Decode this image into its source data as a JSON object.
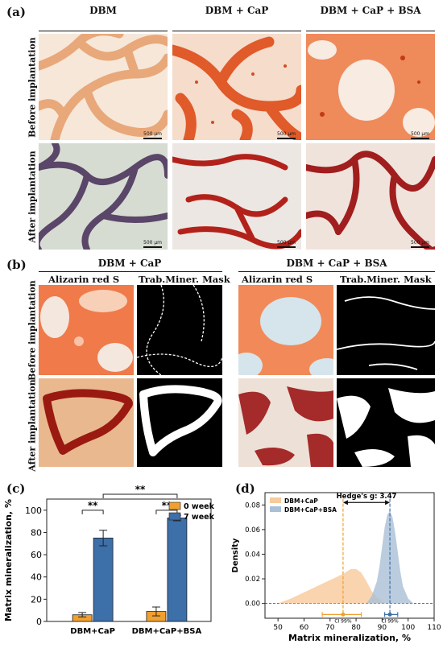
{
  "panel_a": {
    "label": "(a)",
    "columns": [
      "DBM",
      "DBM + CaP",
      "DBM + CaP + BSA"
    ],
    "rows": [
      "Before implantation",
      "After implantation"
    ],
    "scale_bar": "500 µm"
  },
  "panel_b": {
    "label": "(b)",
    "groups": [
      "DBM + CaP",
      "DBM + CaP + BSA"
    ],
    "subcolumns": [
      "Alizarin red S",
      "Trab.Miner. Mask"
    ],
    "rows": [
      "Before implantation",
      "After implantation"
    ]
  },
  "panel_c": {
    "label": "(c)",
    "ylabel": "Matrix mineralization, %",
    "legend": [
      "0 week",
      "7 week"
    ],
    "significance": "**",
    "colors": {
      "week0": "#f0a030",
      "week7": "#3d6fa8"
    }
  },
  "panel_d": {
    "label": "(d)",
    "ylabel": "Density",
    "xlabel": "Matrix mineralization, %",
    "legend": [
      "DBM+CaP",
      "DBM+CaP+BSA"
    ],
    "hedges": "Hedge's g: 3.47",
    "ci_label": "CI 99%",
    "colors": {
      "cap": "#f7c99b",
      "bsa": "#a9bfd6",
      "cap_line": "#f0a030",
      "bsa_line": "#3d6fa8"
    }
  },
  "chart_data": [
    {
      "type": "bar",
      "categories": [
        "DBM+CaP",
        "DBM+CaP+BSA"
      ],
      "series": [
        {
          "name": "0 week",
          "values": [
            6,
            9
          ],
          "errors": [
            2,
            4
          ]
        },
        {
          "name": "7 week",
          "values": [
            75,
            93
          ],
          "errors": [
            7,
            2.5
          ]
        }
      ],
      "ylim": [
        0,
        110
      ],
      "yticks": [
        "0",
        "20",
        "40",
        "60",
        "80",
        "100"
      ],
      "legend_position": "top-right"
    },
    {
      "type": "area",
      "series": [
        {
          "name": "DBM+CaP",
          "x": [
            50,
            55,
            60,
            65,
            70,
            75,
            78,
            80,
            82,
            84,
            86,
            88,
            90,
            92
          ],
          "y": [
            0.0,
            0.004,
            0.009,
            0.014,
            0.019,
            0.024,
            0.028,
            0.028,
            0.025,
            0.018,
            0.01,
            0.005,
            0.002,
            0.0
          ],
          "mean": 75,
          "ci": [
            67,
            82
          ]
        },
        {
          "name": "DBM+CaP+BSA",
          "x": [
            84,
            86,
            88,
            89,
            90,
            91,
            92,
            93,
            94,
            95,
            96,
            97,
            98,
            100,
            102
          ],
          "y": [
            0.0,
            0.006,
            0.018,
            0.03,
            0.046,
            0.062,
            0.072,
            0.075,
            0.07,
            0.058,
            0.042,
            0.026,
            0.014,
            0.004,
            0.0
          ],
          "mean": 93,
          "ci": [
            91,
            96
          ]
        }
      ],
      "xlim": [
        45,
        110
      ],
      "ylim": [
        -0.012,
        0.09
      ],
      "xticks": [
        "50",
        "60",
        "70",
        "80",
        "90",
        "100",
        "110"
      ],
      "yticks": [
        "0.00",
        "0.02",
        "0.04",
        "0.06",
        "0.08"
      ],
      "legend_position": "top-left"
    }
  ]
}
